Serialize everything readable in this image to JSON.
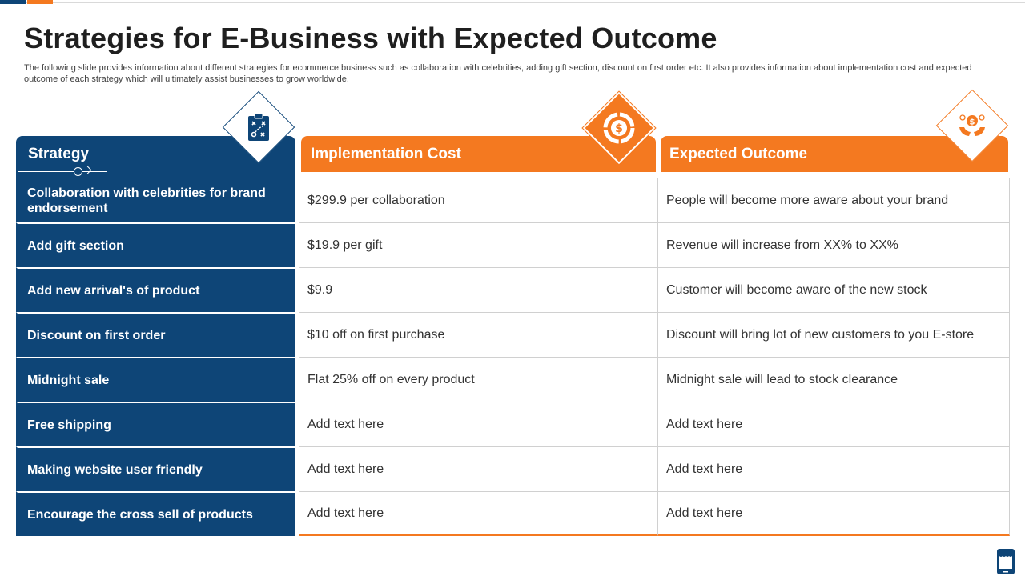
{
  "title": "Strategies for E-Business with Expected Outcome",
  "subtitle": "The following slide provides information about different strategies for ecommerce business such as collaboration with celebrities, adding gift section, discount on first order etc. It also provides information about implementation cost and expected outcome of each strategy which will ultimately assist businesses to grow worldwide.",
  "headers": {
    "strategy": "Strategy",
    "cost": "Implementation Cost",
    "outcome": "Expected Outcome"
  },
  "icons": {
    "strategy": "strategy-board-icon",
    "cost": "dollar-chart-icon",
    "outcome": "money-hands-icon",
    "corner": "mobile-store-icon"
  },
  "colors": {
    "navy": "#0e4577",
    "orange": "#f47920"
  },
  "rows": [
    {
      "strategy": "Collaboration with celebrities for brand endorsement",
      "cost": "$299.9 per collaboration",
      "outcome": "People will become more aware about your brand"
    },
    {
      "strategy": "Add gift section",
      "cost": "$19.9 per gift",
      "outcome": "Revenue  will increase from XX% to XX%"
    },
    {
      "strategy": "Add new arrival's of product",
      "cost": "$9.9",
      "outcome": "Customer will become aware of the new stock"
    },
    {
      "strategy": "Discount on first  order",
      "cost": "$10 off on first purchase",
      "outcome": "Discount will bring lot of new customers to you E-store"
    },
    {
      "strategy": "Midnight sale",
      "cost": "Flat 25% off on every product",
      "outcome": "Midnight sale will lead to stock clearance"
    },
    {
      "strategy": "Free shipping",
      "cost": "Add text here",
      "outcome": "Add text here"
    },
    {
      "strategy": "Making website user friendly",
      "cost": "Add text here",
      "outcome": "Add text here"
    },
    {
      "strategy": "Encourage the cross  sell of products",
      "cost": "Add text here",
      "outcome": "Add text here"
    }
  ]
}
